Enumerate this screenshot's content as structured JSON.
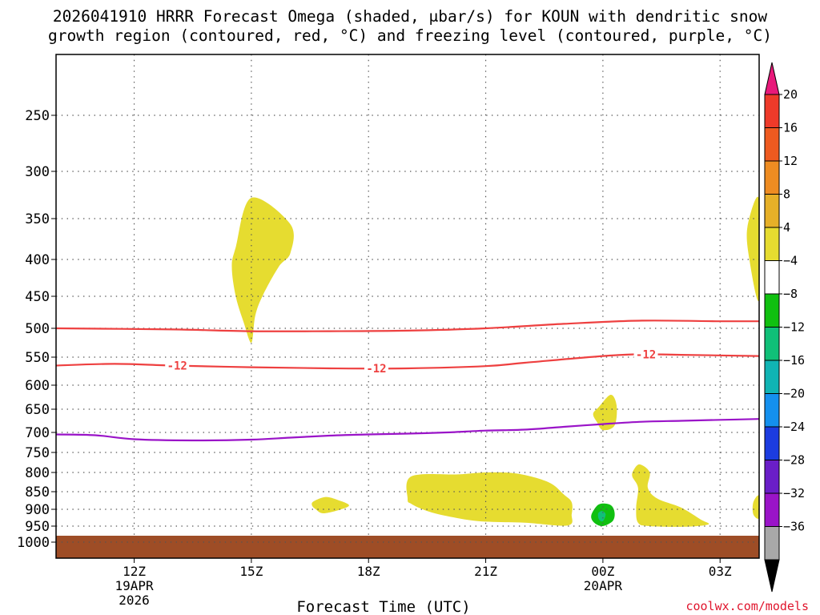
{
  "title": {
    "line1": "2026041910 HRRR Forecast Omega (shaded, μbar/s) for KOUN with dendritic snow",
    "line2": "growth region (contoured, red, °C) and freezing level (contoured, purple, °C)"
  },
  "credit": "coolwx.com/models",
  "colors": {
    "dgz": "#ee4040",
    "freezing": "#9a14c8",
    "ground": "#9e4d26",
    "grid": "#555555"
  },
  "chart_data": {
    "type": "heatmap",
    "model": "HRRR",
    "run": "2026041910",
    "station": "KOUN",
    "xlabel": "Forecast Time (UTC)",
    "ylabel": "",
    "xlim": [
      10.0,
      28.0
    ],
    "ylim": [
      1000,
      200
    ],
    "y_ticks": [
      250,
      300,
      350,
      400,
      450,
      500,
      550,
      600,
      650,
      700,
      750,
      800,
      850,
      900,
      950,
      1000
    ],
    "x_ticks": [
      {
        "value": 12,
        "label": "12Z",
        "sub1": "19APR",
        "sub2": "2026"
      },
      {
        "value": 15,
        "label": "15Z",
        "sub1": "",
        "sub2": ""
      },
      {
        "value": 18,
        "label": "18Z",
        "sub1": "",
        "sub2": ""
      },
      {
        "value": 21,
        "label": "21Z",
        "sub1": "",
        "sub2": ""
      },
      {
        "value": 24,
        "label": "00Z",
        "sub1": "20APR",
        "sub2": ""
      },
      {
        "value": 27,
        "label": "03Z",
        "sub1": "",
        "sub2": ""
      }
    ],
    "colorbar": {
      "labels": [
        "20",
        "16",
        "12",
        "8",
        "4",
        "−4",
        "−8",
        "−12",
        "−16",
        "−20",
        "−24",
        "−28",
        "−32",
        "−36"
      ],
      "colors": [
        "#e8197a",
        "#ee3a2a",
        "#ee5a20",
        "#ee8c22",
        "#e6b028",
        "#e6dc30",
        "#ffffff",
        "#10c010",
        "#10c078",
        "#10b4b4",
        "#1490ee",
        "#1c3ce0",
        "#6a1ec8",
        "#9a14c8",
        "#a8a8a8",
        "#000000"
      ]
    },
    "series": [
      {
        "name": "-12 °C isotherm (upper)",
        "color": "#ee4040",
        "x": [
          10,
          13,
          15,
          17,
          19,
          21,
          23,
          25,
          27,
          28
        ],
        "y": [
          500,
          502,
          505,
          505,
          504,
          500,
          493,
          488,
          489,
          489
        ]
      },
      {
        "name": "-12 °C isotherm (lower)",
        "color": "#ee4040",
        "x": [
          10,
          11.5,
          13,
          15,
          17,
          19,
          21,
          22,
          24,
          25,
          26,
          28
        ],
        "y": [
          565,
          562,
          565,
          568,
          570,
          570,
          566,
          560,
          548,
          545,
          546,
          548
        ],
        "labels": [
          {
            "x": 13.1,
            "y": 565,
            "text": "-12"
          },
          {
            "x": 18.2,
            "y": 570,
            "text": "-12"
          },
          {
            "x": 25.1,
            "y": 545,
            "text": "-12"
          }
        ]
      },
      {
        "name": "Freezing level (0 °C)",
        "color": "#9a14c8",
        "x": [
          10,
          11,
          12,
          13.5,
          15,
          16,
          17,
          18,
          19,
          20,
          21,
          22,
          23,
          24,
          25,
          26,
          27,
          28
        ],
        "y": [
          705,
          707,
          717,
          720,
          718,
          713,
          708,
          705,
          703,
          700,
          696,
          694,
          688,
          682,
          677,
          675,
          673,
          671
        ]
      }
    ],
    "shaded_regions": [
      {
        "name": "omega 4 to 8 μbar/s (~14-16Z aloft)",
        "value_range": [
          4,
          8
        ],
        "color": "#e6dc30",
        "points": [
          [
            15.0,
            328
          ],
          [
            16.0,
            357
          ],
          [
            16.0,
            392
          ],
          [
            15.7,
            410
          ],
          [
            15.3,
            448
          ],
          [
            15.1,
            480
          ],
          [
            15.0,
            525
          ],
          [
            14.8,
            490
          ],
          [
            14.6,
            450
          ],
          [
            14.5,
            410
          ],
          [
            14.6,
            385
          ]
        ]
      },
      {
        "name": "omega 4 to 8 μbar/s (03Z+ aloft)",
        "value_range": [
          4,
          8
        ],
        "color": "#e6dc30",
        "points": [
          [
            28.0,
            330
          ],
          [
            27.7,
            360
          ],
          [
            27.75,
            400
          ],
          [
            28.0,
            455
          ]
        ]
      },
      {
        "name": "omega 4 to 8 μbar/s (~16-17Z low level)",
        "value_range": [
          4,
          8
        ],
        "color": "#e6dc30",
        "points": [
          [
            16.6,
            877
          ],
          [
            16.9,
            865
          ],
          [
            17.2,
            873
          ],
          [
            17.5,
            888
          ],
          [
            17.3,
            900
          ],
          [
            16.85,
            912
          ],
          [
            16.65,
            900
          ],
          [
            16.55,
            888
          ]
        ]
      },
      {
        "name": "omega 4 to 8 μbar/s (~19-22Z low level)",
        "value_range": [
          4,
          8
        ],
        "color": "#e6dc30",
        "points": [
          [
            19.0,
            870
          ],
          [
            19.1,
            810
          ],
          [
            20.3,
            805
          ],
          [
            21.0,
            800
          ],
          [
            21.8,
            803
          ],
          [
            22.6,
            825
          ],
          [
            23.0,
            858
          ],
          [
            23.2,
            880
          ],
          [
            23.2,
            915
          ],
          [
            23.1,
            948
          ],
          [
            22.0,
            940
          ],
          [
            20.8,
            935
          ],
          [
            20.0,
            920
          ],
          [
            19.5,
            905
          ],
          [
            19.1,
            885
          ]
        ]
      },
      {
        "name": "omega 4 to 8 μbar/s (~00Z mid level)",
        "value_range": [
          4,
          8
        ],
        "color": "#e6dc30",
        "points": [
          [
            23.9,
            645
          ],
          [
            24.2,
            620
          ],
          [
            24.35,
            642
          ],
          [
            24.3,
            685
          ],
          [
            24.0,
            695
          ],
          [
            23.85,
            678
          ],
          [
            23.75,
            660
          ]
        ]
      },
      {
        "name": "omega 4 to 8 μbar/s (~01-03Z low level)",
        "value_range": [
          4,
          8
        ],
        "color": "#e6dc30",
        "points": [
          [
            24.8,
            792
          ],
          [
            24.95,
            780
          ],
          [
            25.2,
            800
          ],
          [
            25.15,
            840
          ],
          [
            25.4,
            870
          ],
          [
            26.0,
            895
          ],
          [
            26.5,
            930
          ],
          [
            26.7,
            945
          ],
          [
            26.1,
            952
          ],
          [
            25.2,
            950
          ],
          [
            24.9,
            940
          ],
          [
            24.85,
            895
          ],
          [
            24.9,
            840
          ],
          [
            24.75,
            810
          ]
        ]
      },
      {
        "name": "omega 4 to 8 μbar/s (right edge low level)",
        "value_range": [
          4,
          8
        ],
        "color": "#e6dc30",
        "points": [
          [
            28.0,
            862
          ],
          [
            27.85,
            880
          ],
          [
            27.85,
            915
          ],
          [
            28.0,
            925
          ]
        ]
      },
      {
        "name": "omega -4 to -8 μbar/s (~00Z)",
        "value_range": [
          -8,
          -4
        ],
        "color": "#10c010",
        "points": [
          [
            23.75,
            905
          ],
          [
            23.92,
            885
          ],
          [
            24.2,
            888
          ],
          [
            24.3,
            910
          ],
          [
            24.25,
            935
          ],
          [
            24.0,
            950
          ],
          [
            23.8,
            942
          ],
          [
            23.7,
            925
          ]
        ]
      },
      {
        "name": "omega -8 to -12 μbar/s (~00Z core)",
        "value_range": [
          -12,
          -8
        ],
        "color": "#10c078",
        "points": [
          [
            23.88,
            912
          ],
          [
            23.98,
            905
          ],
          [
            24.07,
            915
          ],
          [
            24.0,
            935
          ],
          [
            23.9,
            930
          ]
        ]
      }
    ],
    "ground": {
      "name": "below ground",
      "color": "#9e4d26",
      "from_pressure": 980
    }
  }
}
